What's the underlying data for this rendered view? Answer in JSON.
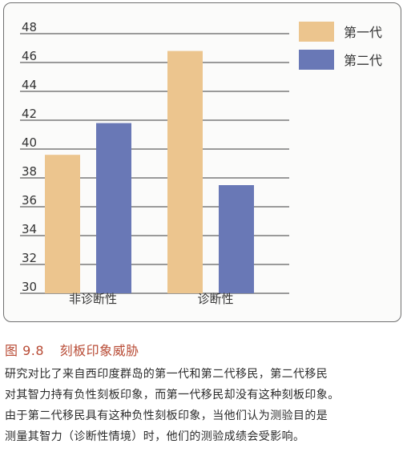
{
  "chart_data": {
    "type": "bar",
    "categories": [
      "非诊断性",
      "诊断性"
    ],
    "series": [
      {
        "name": "第一代",
        "values": [
          39.6,
          46.8
        ],
        "color": "#ecc58e"
      },
      {
        "name": "第二代",
        "values": [
          41.8,
          37.5
        ],
        "color": "#6978b6"
      }
    ],
    "ylim": [
      30,
      48
    ],
    "yticks": [
      30,
      32,
      34,
      36,
      38,
      40,
      42,
      44,
      46,
      48
    ],
    "grid": "horizontal",
    "legend": "top-right"
  },
  "caption": {
    "figure_number": "图 9.8",
    "title": "刻板印象威胁",
    "lines": [
      "研究对比了来自西印度群岛的第一代和第二代移民，第二代移民",
      "对其智力持有负性刻板印象，而第一代移民却没有这种刻板印象。",
      "由于第二代移民具有这种负性刻板印象，当他们认为测验目的是",
      "测量其智力（诊断性情境）时，他们的测验成绩会受影响。"
    ]
  }
}
